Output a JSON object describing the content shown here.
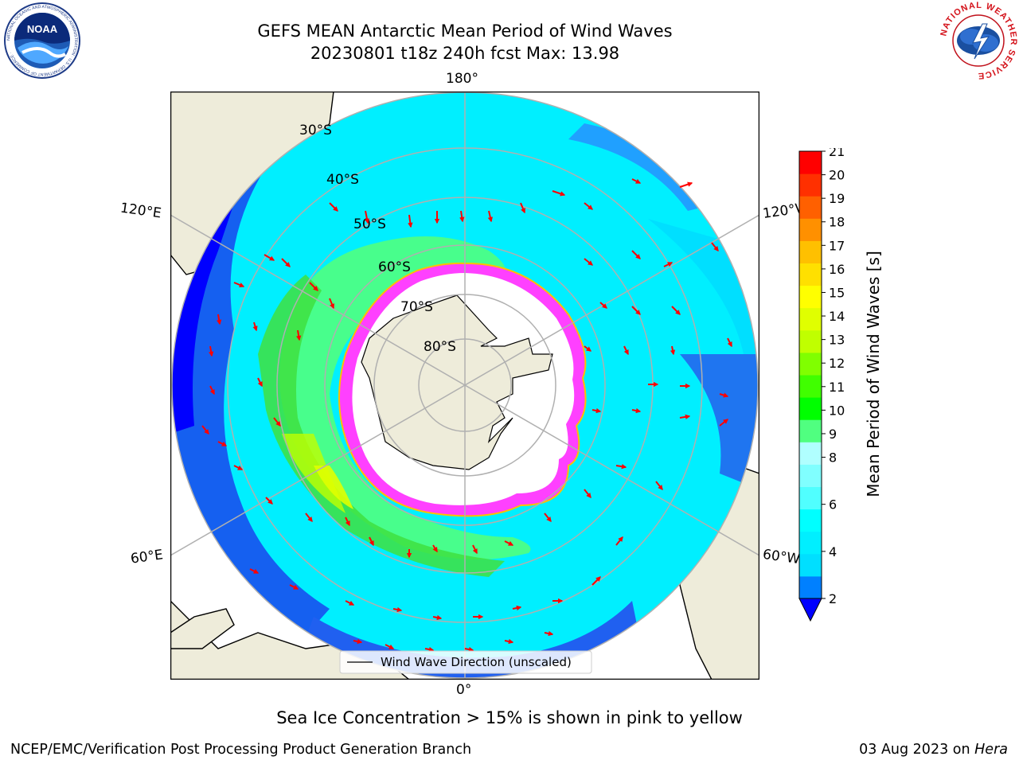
{
  "header": {
    "title_line1": "GEFS MEAN Antarctic Mean Period of Wind Waves",
    "title_line2": "20230801 t18z 240h fcst   Max: 13.98"
  },
  "logos": {
    "noaa": {
      "text": "NOAA",
      "ring_text": "NATIONAL OCEANIC AND ATMOSPHERIC ADMINISTRATION · U.S. DEPARTMENT OF COMMERCE ·"
    },
    "nws": {
      "ring_text": "NATIONAL WEATHER SERVICE"
    }
  },
  "map": {
    "projection": "south-polar-stereographic",
    "lon_labels": {
      "top": "180°",
      "bottom": "0°",
      "left_upper": "120°E",
      "left_lower": "60°E",
      "right_upper": "120°W",
      "right_lower": "60°W"
    },
    "lat_labels": [
      "30°S",
      "40°S",
      "50°S",
      "60°S",
      "70°S",
      "80°S"
    ],
    "legend": {
      "label": "Wind Wave Direction (unscaled)"
    },
    "colors": {
      "land": "#eeecda",
      "ice_free": "#ffffff",
      "grid": "#b0b0b0",
      "arrow": "#ff0000",
      "sea_ice": "#ff40ff"
    }
  },
  "colorbar": {
    "label": "Mean Period of Wind Waves [s]",
    "ticks": [
      "21",
      "20",
      "19",
      "18",
      "17",
      "16",
      "15",
      "14",
      "13",
      "12",
      "11",
      "10",
      "9",
      "8",
      "6",
      "4",
      "2"
    ],
    "levels": [
      2,
      3,
      4,
      5,
      6,
      7,
      8,
      9,
      10,
      11,
      12,
      13,
      14,
      15,
      16,
      17,
      18,
      19,
      20,
      21
    ],
    "colors": [
      "#0080ff",
      "#00dfff",
      "#00efff",
      "#00ffff",
      "#50ffff",
      "#80ffff",
      "#b0ffff",
      "#50ff80",
      "#00ff00",
      "#40ff00",
      "#80ff00",
      "#c0ff00",
      "#e0ff00",
      "#ffff00",
      "#ffe000",
      "#ffc000",
      "#ff9000",
      "#ff6000",
      "#ff3000",
      "#ff0000"
    ],
    "under_color": "#0000ff"
  },
  "caption": "Sea Ice Concentration > 15% is shown in pink to yellow",
  "footer": {
    "left": "NCEP/EMC/Verification Post Processing Product Generation Branch",
    "date": "03 Aug 2023 on ",
    "host": "Hera"
  }
}
